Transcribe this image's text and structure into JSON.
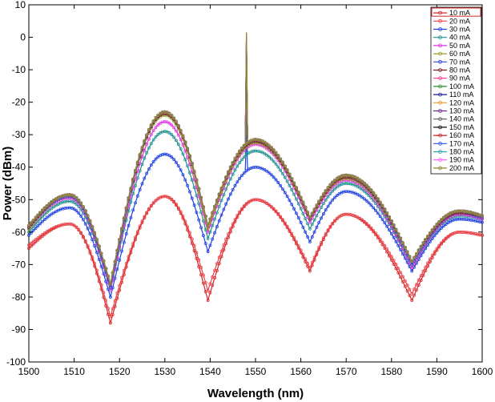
{
  "chart_data": {
    "type": "line",
    "title": "",
    "xlabel": "Wavelength (nm)",
    "ylabel": "Power (dBm)",
    "xlim": [
      1500,
      1600
    ],
    "ylim": [
      -100,
      10
    ],
    "xticks": [
      1500,
      1510,
      1520,
      1530,
      1540,
      1550,
      1560,
      1570,
      1580,
      1590,
      1600
    ],
    "yticks": [
      10,
      0,
      -10,
      -20,
      -30,
      -40,
      -50,
      -60,
      -70,
      -80,
      -90,
      -100
    ],
    "grid": false,
    "legend_position": "top-right",
    "x_knots": [
      1500,
      1509,
      1518,
      1530,
      1539.5,
      1550,
      1562,
      1570,
      1584.5,
      1595,
      1600
    ],
    "series": [
      {
        "name": "10 mA",
        "color": "#d62728",
        "marker": "square",
        "y_knots": [
          -65,
          -57.5,
          -88,
          -49,
          -81,
          -50,
          -72,
          -54.5,
          -81,
          -60,
          -61
        ],
        "peak": null
      },
      {
        "name": "20 mA",
        "color": "#e8434a",
        "marker": "circle",
        "y_knots": [
          -64,
          -57.5,
          -86,
          -49,
          -78,
          -50,
          -71,
          -54.5,
          -79,
          -60,
          -61
        ],
        "peak": null
      },
      {
        "name": "30 mA",
        "color": "#1f3fe0",
        "marker": "triangle",
        "y_knots": [
          -61,
          -52.5,
          -80,
          -36,
          -66,
          -40,
          -63,
          -47.5,
          -72,
          -56,
          -57
        ],
        "peak": -30
      },
      {
        "name": "40 mA",
        "color": "#1f8f8f",
        "marker": "triangle",
        "y_knots": [
          -60,
          -50.5,
          -78,
          -29,
          -62,
          -35,
          -59,
          -45,
          -71,
          -55,
          -56
        ],
        "peak": -25
      },
      {
        "name": "50 mA",
        "color": "#e033e0",
        "marker": "triangle",
        "y_knots": [
          -59,
          -49.5,
          -78,
          -26,
          -60,
          -33,
          -57,
          -44,
          -71,
          -54.5,
          -56
        ],
        "peak": -20
      },
      {
        "name": "60 mA",
        "color": "#9b9b2a",
        "marker": "diamond",
        "y_knots": [
          -59,
          -49,
          -77,
          -24,
          -59,
          -32.5,
          -56,
          -43.5,
          -70,
          -54,
          -55.5
        ],
        "peak": -12
      },
      {
        "name": "70 mA",
        "color": "#3344cc",
        "marker": "diamond",
        "y_knots": [
          -58.5,
          -49,
          -77,
          -23.5,
          -58,
          -32,
          -56,
          -43,
          -70,
          -54,
          -55.5
        ],
        "peak": -8
      },
      {
        "name": "80 mA",
        "color": "#7a1f1f",
        "marker": "circle",
        "y_knots": [
          -58.5,
          -48.5,
          -76,
          -23.5,
          -58,
          -32,
          -56,
          -43,
          -69,
          -54,
          -55
        ],
        "peak": -5
      },
      {
        "name": "90 mA",
        "color": "#ff3399",
        "marker": "circle",
        "y_knots": [
          -58,
          -48.5,
          -76,
          -23,
          -58,
          -31.5,
          -55.5,
          -42.5,
          -69,
          -53.5,
          -55
        ],
        "peak": -3
      },
      {
        "name": "100 mA",
        "color": "#2e8b2e",
        "marker": "circle",
        "y_knots": [
          -58,
          -48.5,
          -76,
          -23,
          -58,
          -31.5,
          -55.5,
          -42.5,
          -69,
          -53.5,
          -55
        ],
        "peak": -2
      },
      {
        "name": "110 mA",
        "color": "#1a1a99",
        "marker": "triangle",
        "y_knots": [
          -58,
          -48.5,
          -76,
          -23,
          -58,
          -31.5,
          -55.5,
          -42.5,
          -69,
          -53.5,
          -55
        ],
        "peak": -1
      },
      {
        "name": "120 mA",
        "color": "#e89a2e",
        "marker": "plus",
        "y_knots": [
          -58,
          -48.5,
          -76,
          -23,
          -58,
          -31.5,
          -55.5,
          -42.5,
          -69,
          -53.5,
          -55
        ],
        "peak": 0
      },
      {
        "name": "130 mA",
        "color": "#6a2d8f",
        "marker": "triangle",
        "y_knots": [
          -58,
          -48.5,
          -76,
          -23,
          -58,
          -31.5,
          -55.5,
          -42.5,
          -69,
          -53.5,
          -55
        ],
        "peak": 0
      },
      {
        "name": "140 mA",
        "color": "#5a5a5a",
        "marker": "triangle",
        "y_knots": [
          -58,
          -48.5,
          -76,
          -23,
          -58,
          -31.5,
          -55.5,
          -42.5,
          -69,
          -53.5,
          -55
        ],
        "peak": 0.5
      },
      {
        "name": "150 mA",
        "color": "#111111",
        "marker": "star",
        "y_knots": [
          -58,
          -48.5,
          -76,
          -23,
          -58,
          -31.5,
          -55.5,
          -42.5,
          -69,
          -53.5,
          -55
        ],
        "peak": 0.5
      },
      {
        "name": "160 mA",
        "color": "#cc1f1f",
        "marker": "circle",
        "y_knots": [
          -58,
          -48.5,
          -76,
          -23,
          -58,
          -31.5,
          -55.5,
          -42.5,
          -69,
          -53.5,
          -55
        ],
        "peak": 1
      },
      {
        "name": "170 mA",
        "color": "#3355ee",
        "marker": "triangle",
        "y_knots": [
          -58,
          -48.5,
          -76,
          -23,
          -58,
          -31.5,
          -55.5,
          -42.5,
          -69,
          -53.5,
          -55
        ],
        "peak": 1
      },
      {
        "name": "180 mA",
        "color": "#2aa8a8",
        "marker": "diamond",
        "y_knots": [
          -58,
          -48.5,
          -76,
          -23,
          -58,
          -31.5,
          -55.5,
          -42.5,
          -69,
          -53.5,
          -55
        ],
        "peak": 1.5
      },
      {
        "name": "190 mA",
        "color": "#ff55ff",
        "marker": "square",
        "y_knots": [
          -58,
          -48.5,
          -76,
          -23,
          -58,
          -31.5,
          -55.5,
          -42.5,
          -69,
          -53.5,
          -55
        ],
        "peak": 1.5
      },
      {
        "name": "200 mA",
        "color": "#8a8a2a",
        "marker": "diamond",
        "y_knots": [
          -58,
          -48.5,
          -76,
          -23,
          -58,
          -31.5,
          -55.5,
          -42.5,
          -69,
          -53.5,
          -55
        ],
        "peak": 1.5
      }
    ],
    "peak_wavelength": 1548
  }
}
